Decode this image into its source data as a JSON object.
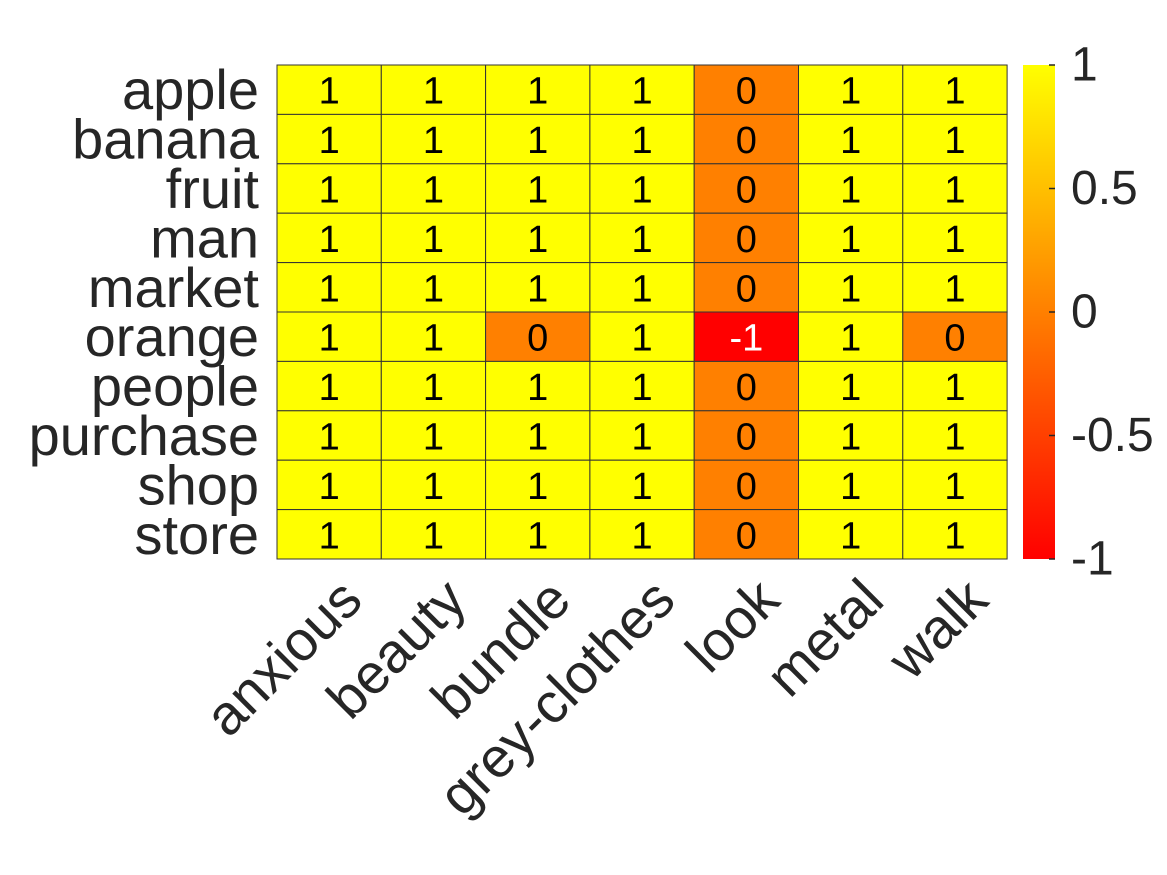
{
  "chart_data": {
    "type": "heatmap",
    "title": "",
    "xlabel": "",
    "ylabel": "",
    "rows": [
      "apple",
      "banana",
      "fruit",
      "man",
      "market",
      "orange",
      "people",
      "purchase",
      "shop",
      "store"
    ],
    "columns": [
      "anxious",
      "beauty",
      "bundle",
      "grey-clothes",
      "look",
      "metal",
      "walk"
    ],
    "values": [
      [
        1,
        1,
        1,
        1,
        0,
        1,
        1
      ],
      [
        1,
        1,
        1,
        1,
        0,
        1,
        1
      ],
      [
        1,
        1,
        1,
        1,
        0,
        1,
        1
      ],
      [
        1,
        1,
        1,
        1,
        0,
        1,
        1
      ],
      [
        1,
        1,
        1,
        1,
        0,
        1,
        1
      ],
      [
        1,
        1,
        0,
        1,
        -1,
        1,
        0
      ],
      [
        1,
        1,
        1,
        1,
        0,
        1,
        1
      ],
      [
        1,
        1,
        1,
        1,
        0,
        1,
        1
      ],
      [
        1,
        1,
        1,
        1,
        0,
        1,
        1
      ],
      [
        1,
        1,
        1,
        1,
        0,
        1,
        1
      ]
    ],
    "colormap": "autumn",
    "color_low": "#ff0000",
    "color_high": "#ffff00",
    "clim": [
      -1,
      1
    ],
    "colorbar": {
      "position": "right",
      "ticks": [
        -1,
        -0.5,
        0,
        0.5,
        1
      ],
      "tick_labels": [
        "-1",
        "-0.5",
        "0",
        "0.5",
        "1"
      ]
    }
  }
}
